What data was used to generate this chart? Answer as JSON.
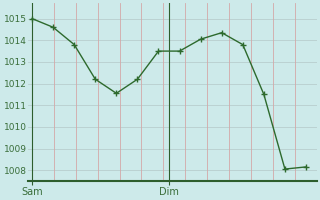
{
  "x_vals": [
    0,
    1,
    2,
    3,
    4,
    5,
    6,
    7,
    8,
    9,
    10,
    11,
    12,
    13
  ],
  "y_vals": [
    1015.0,
    1014.6,
    1013.8,
    1012.2,
    1011.55,
    1012.2,
    1013.5,
    1013.5,
    1014.05,
    1014.35,
    1013.8,
    1011.5,
    1008.05,
    1008.15
  ],
  "sam_x": 0,
  "dim_x": 6.5,
  "sam_label": "Sam",
  "dim_label": "Dim",
  "ylim": [
    1007.5,
    1015.7
  ],
  "yticks": [
    1008,
    1009,
    1010,
    1011,
    1012,
    1013,
    1014,
    1015
  ],
  "xlim": [
    -0.2,
    13.5
  ],
  "line_color": "#2d6a2d",
  "marker_color": "#2d6a2d",
  "bg_color": "#cdeaea",
  "grid_h_color": "#b8cece",
  "grid_v_color": "#d4a8a8",
  "label_color": "#3a6e3a",
  "axis_color": "#2d5e2d",
  "tick_label_fontsize": 6.5
}
